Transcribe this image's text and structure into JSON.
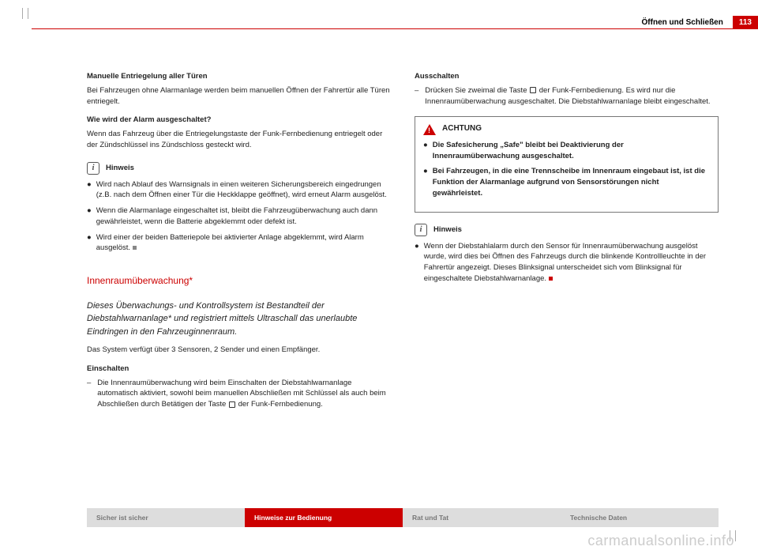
{
  "header": {
    "section": "Öffnen und Schließen",
    "page": "113"
  },
  "leftCol": {
    "h1": "Manuelle Entriegelung aller Türen",
    "p1": "Bei Fahrzeugen ohne Alarmanlage werden beim manuellen Öffnen der Fahrertür alle Türen entriegelt.",
    "h2": "Wie wird der Alarm ausgeschaltet?",
    "p2": "Wenn das Fahrzeug über die Entriegelungstaste der Funk-Fernbedienung entriegelt oder der Zündschlüssel ins Zündschloss gesteckt wird.",
    "hinweisLabel": "Hinweis",
    "b1": "Wird nach Ablauf des Warnsignals in einen weiteren Sicherungsbereich eingedrungen (z.B. nach dem Öffnen einer Tür die Heckklappe geöffnet), wird erneut Alarm ausgelöst.",
    "b2": "Wenn die Alarmanlage eingeschaltet ist, bleibt die Fahrzeugüberwachung auch dann gewährleistet, wenn die Batterie abgeklemmt oder defekt ist.",
    "b3": "Wird einer der beiden Batteriepole bei aktivierter Anlage abgeklemmt, wird Alarm ausgelöst.",
    "sectionTitle": "Innenraumüberwachung*",
    "sectionSub": "Dieses Überwachungs- und Kontrollsystem ist Bestandteil der Diebstahlwarnanlage* und registriert mittels Ultraschall das unerlaubte Eindringen in den Fahrzeuginnenraum.",
    "p3": "Das System verfügt über 3 Sensoren, 2 Sender und einen Empfänger.",
    "h3": "Einschalten",
    "d1a": "Die Innenraumüberwachung wird beim Einschalten der Diebstahlwarnanlage automatisch aktiviert, sowohl beim manuellen Abschließen mit Schlüssel als auch beim Abschließen durch Betätigen der Taste ",
    "d1b": " der Funk-Fernbedienung."
  },
  "rightCol": {
    "h1": "Ausschalten",
    "d1a": "Drücken Sie zweimal die Taste ",
    "d1b": " der Funk-Fernbedienung. Es wird nur die Innenraumüberwachung ausgeschaltet. Die Diebstahlwarnanlage bleibt eingeschaltet.",
    "achtungLabel": "ACHTUNG",
    "w1": "Die Safesicherung „Safe\" bleibt bei Deaktivierung der Innenraumüberwachung ausgeschaltet.",
    "w2": "Bei Fahrzeugen, in die eine Trennscheibe im Innenraum eingebaut ist, ist die Funktion der Alarmanlage aufgrund von Sensorstörungen nicht gewährleistet.",
    "hinweisLabel": "Hinweis",
    "b1": "Wenn der Diebstahlalarm durch den Sensor für Innenraumüberwachung ausgelöst wurde, wird dies bei Öffnen des Fahrzeugs durch die blinkende Kontrollleuchte in der Fahrertür angezeigt. Dieses Blinksignal unterscheidet sich vom Blinksignal für eingeschaltete Diebstahlwarnanlage."
  },
  "footer": {
    "t1": "Sicher ist sicher",
    "t2": "Hinweise zur Bedienung",
    "t3": "Rat und Tat",
    "t4": "Technische Daten"
  },
  "watermark": "carmanualsonline.info"
}
